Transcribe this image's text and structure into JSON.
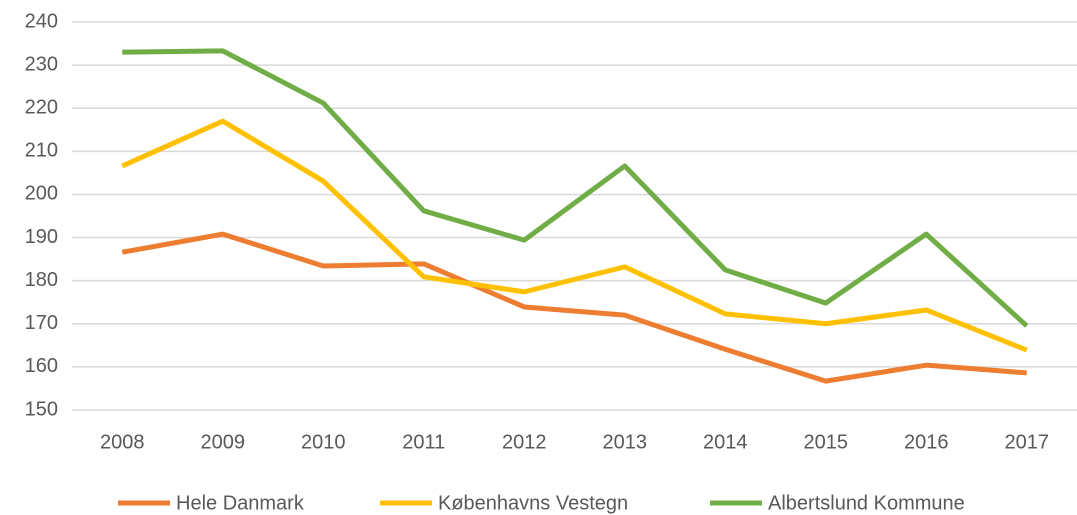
{
  "chart_data": {
    "type": "line",
    "categories": [
      "2008",
      "2009",
      "2010",
      "2011",
      "2012",
      "2013",
      "2014",
      "2015",
      "2016",
      "2017"
    ],
    "series": [
      {
        "name": "Hele Danmark",
        "color": "#ed7d31",
        "values": [
          186.6,
          190.8,
          183.4,
          183.9,
          173.9,
          172,
          164.1,
          156.7,
          160.4,
          158.6
        ]
      },
      {
        "name": "Københavns Vestegn",
        "color": "#ffc000",
        "values": [
          206.6,
          217,
          203.1,
          180.9,
          177.4,
          183.2,
          172.3,
          170,
          173.2,
          163.9
        ]
      },
      {
        "name": "Albertslund Kommune",
        "color": "#70ad47",
        "values": [
          233,
          233.3,
          221.2,
          196.2,
          189.4,
          206.6,
          182.5,
          174.8,
          190.8,
          169.5
        ]
      }
    ],
    "ylim": [
      150,
      240
    ],
    "yticks": [
      150,
      160,
      170,
      180,
      190,
      200,
      210,
      220,
      230,
      240
    ],
    "grid": true,
    "legend": "bottom"
  }
}
